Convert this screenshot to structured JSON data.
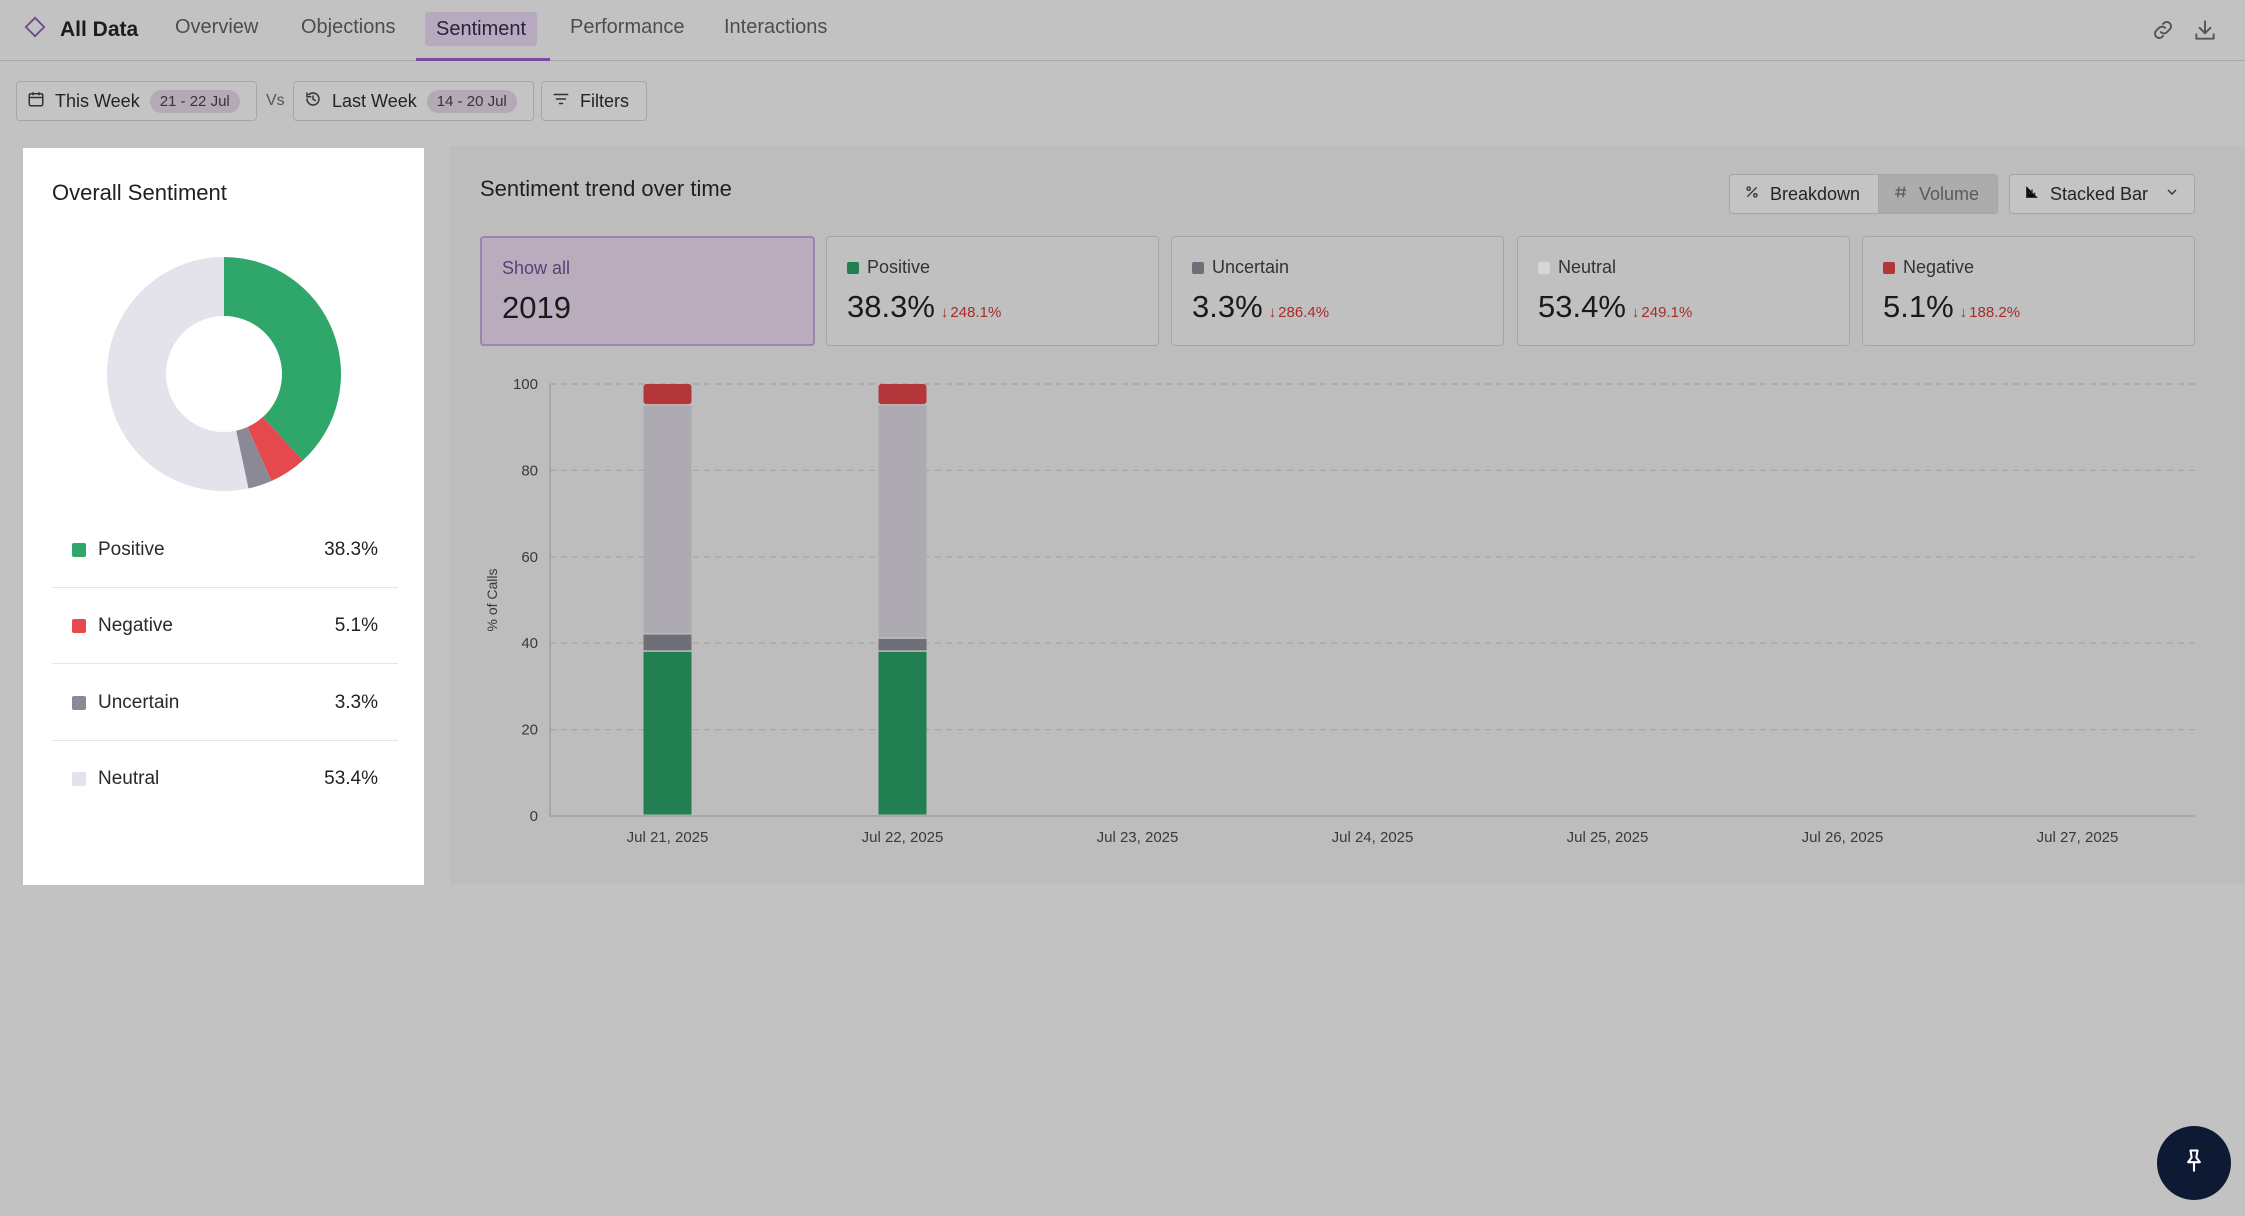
{
  "nav": {
    "brand": "All Data",
    "tabs": [
      {
        "label": "Overview"
      },
      {
        "label": "Objections"
      },
      {
        "label": "Sentiment"
      },
      {
        "label": "Performance"
      },
      {
        "label": "Interactions"
      }
    ],
    "active_tab": "Sentiment",
    "icons": [
      "diamond-icon",
      "link-icon",
      "download-icon"
    ]
  },
  "filters": {
    "current": {
      "label": "This Week",
      "range": "21 - 22 Jul"
    },
    "vs_label": "Vs",
    "previous": {
      "label": "Last Week",
      "range": "14 - 20 Jul"
    },
    "filters_label": "Filters"
  },
  "overall": {
    "title": "Overall Sentiment",
    "items": [
      {
        "label": "Positive",
        "value": "38.3%",
        "pct": 38.3,
        "color": "#2fa66a"
      },
      {
        "label": "Negative",
        "value": "5.1%",
        "pct": 5.1,
        "color": "#e5484d"
      },
      {
        "label": "Uncertain",
        "value": "3.3%",
        "pct": 3.3,
        "color": "#8a8a96"
      },
      {
        "label": "Neutral",
        "value": "53.4%",
        "pct": 53.4,
        "color": "#e4e2ea"
      }
    ]
  },
  "trend": {
    "title": "Sentiment trend over time",
    "buttons": {
      "breakdown": "Breakdown",
      "volume": "Volume",
      "chart_type": "Stacked Bar"
    },
    "stats": {
      "show_all": {
        "label": "Show all",
        "value": "2019"
      },
      "positive": {
        "label": "Positive",
        "value": "38.3%",
        "delta": "248.1%"
      },
      "uncertain": {
        "label": "Uncertain",
        "value": "3.3%",
        "delta": "286.4%"
      },
      "neutral": {
        "label": "Neutral",
        "value": "53.4%",
        "delta": "249.1%"
      },
      "negative": {
        "label": "Negative",
        "value": "5.1%",
        "delta": "188.2%"
      }
    }
  },
  "chart_data": {
    "type": "bar",
    "stacked": true,
    "ylabel": "% of Calls",
    "ylim": [
      0,
      100
    ],
    "yticks": [
      0,
      20,
      40,
      60,
      80,
      100
    ],
    "grid": true,
    "categories": [
      "Jul 21, 2025",
      "Jul 22, 2025",
      "Jul 23, 2025",
      "Jul 24, 2025",
      "Jul 25, 2025",
      "Jul 26, 2025",
      "Jul 27, 2025"
    ],
    "series": [
      {
        "name": "Positive",
        "color": "#217f51",
        "values": [
          38,
          38,
          0,
          0,
          0,
          0,
          0
        ]
      },
      {
        "name": "Uncertain",
        "color": "#6f6f78",
        "values": [
          4,
          3,
          0,
          0,
          0,
          0,
          0
        ]
      },
      {
        "name": "Neutral",
        "color": "#adabb1",
        "values": [
          53,
          54,
          0,
          0,
          0,
          0,
          0
        ]
      },
      {
        "name": "Negative",
        "color": "#b3363b",
        "values": [
          5,
          5,
          0,
          0,
          0,
          0,
          0
        ]
      }
    ]
  }
}
